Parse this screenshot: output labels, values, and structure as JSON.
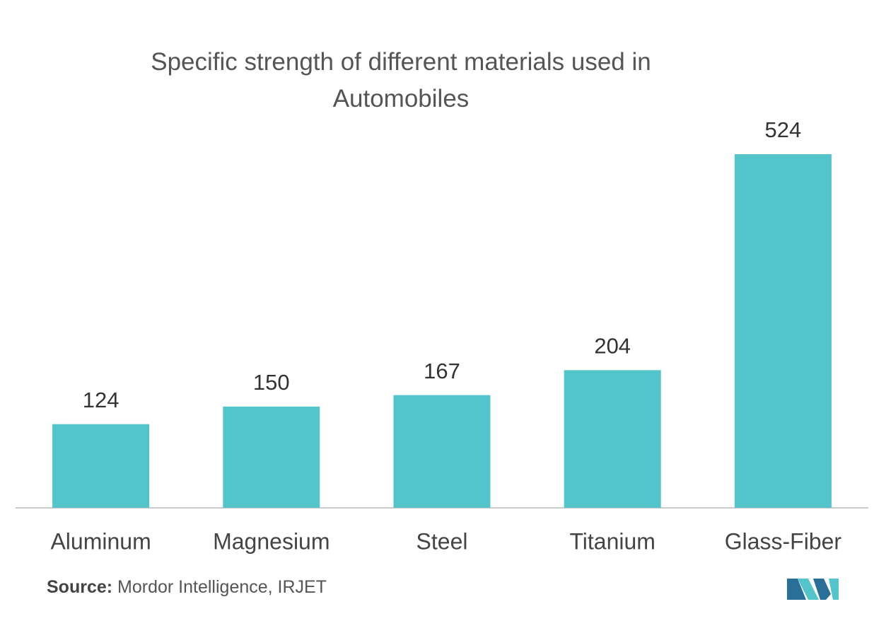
{
  "chart_data": {
    "type": "bar",
    "title": "Specific strength of different materials used in Automobiles",
    "categories": [
      "Aluminum",
      "Magnesium",
      "Steel",
      "Titanium",
      "Glass-Fiber"
    ],
    "values": [
      124,
      150,
      167,
      204,
      524
    ],
    "color": "#52c4ca",
    "source_label": "Source:",
    "source": "Mordor Intelligence, IRJET"
  }
}
